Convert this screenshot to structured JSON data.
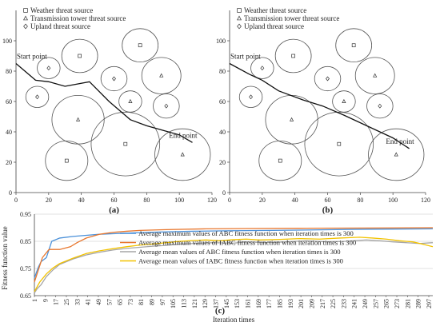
{
  "chart_data": [
    {
      "type": "scatter",
      "panel_label": "(a)",
      "xlim": [
        0,
        120
      ],
      "ylim": [
        0,
        120
      ],
      "xticks": [
        0,
        20,
        40,
        60,
        80,
        100,
        120
      ],
      "yticks": [
        0,
        20,
        40,
        60,
        80,
        100
      ],
      "legend": [
        {
          "symbol": "square",
          "label": "Weather threat source"
        },
        {
          "symbol": "triangle",
          "label": "Transmission tower threat source"
        },
        {
          "symbol": "diamond",
          "label": "Upland threat source"
        }
      ],
      "annotations": {
        "start": "Start point",
        "end": "End point"
      },
      "threats": [
        {
          "type": "diamond",
          "x": 20,
          "y": 82,
          "r": 7
        },
        {
          "type": "square",
          "x": 39,
          "y": 90,
          "r": 11
        },
        {
          "type": "square",
          "x": 76,
          "y": 97,
          "r": 11
        },
        {
          "type": "diamond",
          "x": 13,
          "y": 63,
          "r": 7
        },
        {
          "type": "diamond",
          "x": 60,
          "y": 75,
          "r": 8
        },
        {
          "type": "triangle",
          "x": 89,
          "y": 77,
          "r": 12
        },
        {
          "type": "triangle",
          "x": 70,
          "y": 60,
          "r": 7
        },
        {
          "type": "diamond",
          "x": 92,
          "y": 57,
          "r": 8
        },
        {
          "type": "triangle",
          "x": 38,
          "y": 48,
          "r": 16
        },
        {
          "type": "square",
          "x": 31,
          "y": 21,
          "r": 13
        },
        {
          "type": "square",
          "x": 67,
          "y": 32,
          "r": 21
        },
        {
          "type": "triangle",
          "x": 102,
          "y": 25,
          "r": 17
        }
      ],
      "path": [
        [
          0,
          85
        ],
        [
          12,
          74
        ],
        [
          20,
          73
        ],
        [
          30,
          70
        ],
        [
          45,
          73
        ],
        [
          57,
          60
        ],
        [
          70,
          48
        ],
        [
          80,
          44
        ],
        [
          90,
          41
        ],
        [
          100,
          38
        ],
        [
          108,
          33
        ]
      ]
    },
    {
      "type": "scatter",
      "panel_label": "(b)",
      "xlim": [
        0,
        120
      ],
      "ylim": [
        0,
        120
      ],
      "xticks": [
        0,
        20,
        40,
        60,
        80,
        100,
        120
      ],
      "yticks": [
        0,
        20,
        40,
        60,
        80,
        100
      ],
      "legend": [
        {
          "symbol": "square",
          "label": "Weather threat source"
        },
        {
          "symbol": "triangle",
          "label": "Transmission tower threat source"
        },
        {
          "symbol": "diamond",
          "label": "Upland threat source"
        }
      ],
      "annotations": {
        "start": "Start point",
        "end": "End point"
      },
      "threats": [
        {
          "type": "diamond",
          "x": 20,
          "y": 82,
          "r": 7
        },
        {
          "type": "square",
          "x": 39,
          "y": 90,
          "r": 11
        },
        {
          "type": "square",
          "x": 76,
          "y": 97,
          "r": 11
        },
        {
          "type": "diamond",
          "x": 13,
          "y": 63,
          "r": 7
        },
        {
          "type": "diamond",
          "x": 60,
          "y": 75,
          "r": 8
        },
        {
          "type": "triangle",
          "x": 89,
          "y": 77,
          "r": 12
        },
        {
          "type": "triangle",
          "x": 70,
          "y": 60,
          "r": 7
        },
        {
          "type": "diamond",
          "x": 92,
          "y": 57,
          "r": 8
        },
        {
          "type": "triangle",
          "x": 38,
          "y": 48,
          "r": 16
        },
        {
          "type": "square",
          "x": 31,
          "y": 21,
          "r": 13
        },
        {
          "type": "square",
          "x": 67,
          "y": 32,
          "r": 21
        },
        {
          "type": "triangle",
          "x": 102,
          "y": 25,
          "r": 17
        }
      ],
      "path": [
        [
          0,
          85
        ],
        [
          12,
          78
        ],
        [
          20,
          74
        ],
        [
          30,
          67
        ],
        [
          45,
          61
        ],
        [
          57,
          57
        ],
        [
          70,
          51
        ],
        [
          80,
          46
        ],
        [
          90,
          41
        ],
        [
          100,
          36
        ],
        [
          110,
          29
        ]
      ]
    },
    {
      "type": "line",
      "panel_label": "(c)",
      "xlabel": "Iteration times",
      "ylabel": "Fitness function value",
      "xlim": [
        1,
        300
      ],
      "ylim": [
        0.65,
        0.95
      ],
      "yticks": [
        0.65,
        0.75,
        0.85,
        0.95
      ],
      "xticks": [
        1,
        9,
        17,
        25,
        33,
        41,
        49,
        57,
        65,
        73,
        81,
        89,
        97,
        105,
        113,
        121,
        129,
        137,
        145,
        153,
        161,
        169,
        177,
        185,
        193,
        201,
        209,
        217,
        225,
        233,
        241,
        249,
        257,
        265,
        273,
        281,
        289,
        297
      ],
      "series": [
        {
          "name": "Average maximum values of ABC fitness function when iteration times is 300",
          "color": "#4a90d9",
          "points": [
            [
              1,
              0.715
            ],
            [
              4,
              0.755
            ],
            [
              6,
              0.775
            ],
            [
              10,
              0.79
            ],
            [
              14,
              0.85
            ],
            [
              20,
              0.862
            ],
            [
              30,
              0.868
            ],
            [
              40,
              0.872
            ],
            [
              50,
              0.876
            ],
            [
              60,
              0.878
            ],
            [
              70,
              0.88
            ],
            [
              80,
              0.882
            ],
            [
              100,
              0.885
            ],
            [
              120,
              0.887
            ],
            [
              150,
              0.889
            ],
            [
              180,
              0.89
            ],
            [
              210,
              0.892
            ],
            [
              240,
              0.894
            ],
            [
              270,
              0.895
            ],
            [
              300,
              0.896
            ]
          ]
        },
        {
          "name": "Average maximum values of IABC fitness function when iteration times is 300",
          "color": "#e8772e",
          "points": [
            [
              1,
              0.7
            ],
            [
              4,
              0.745
            ],
            [
              7,
              0.79
            ],
            [
              12,
              0.82
            ],
            [
              20,
              0.82
            ],
            [
              28,
              0.83
            ],
            [
              33,
              0.845
            ],
            [
              40,
              0.862
            ],
            [
              50,
              0.876
            ],
            [
              60,
              0.883
            ],
            [
              70,
              0.887
            ],
            [
              80,
              0.89
            ],
            [
              100,
              0.893
            ],
            [
              130,
              0.896
            ],
            [
              160,
              0.897
            ],
            [
              200,
              0.898
            ],
            [
              250,
              0.899
            ],
            [
              300,
              0.9
            ]
          ]
        },
        {
          "name": "Average mean values of ABC fitness function when iteration times is 300",
          "color": "#a6a6a6",
          "points": [
            [
              1,
              0.66
            ],
            [
              3,
              0.675
            ],
            [
              6,
              0.69
            ],
            [
              10,
              0.72
            ],
            [
              15,
              0.745
            ],
            [
              20,
              0.765
            ],
            [
              30,
              0.785
            ],
            [
              40,
              0.8
            ],
            [
              50,
              0.81
            ],
            [
              60,
              0.818
            ],
            [
              70,
              0.824
            ],
            [
              80,
              0.828
            ],
            [
              90,
              0.832
            ],
            [
              100,
              0.835
            ],
            [
              110,
              0.84
            ],
            [
              120,
              0.842
            ],
            [
              135,
              0.845
            ],
            [
              150,
              0.843
            ],
            [
              160,
              0.848
            ],
            [
              175,
              0.845
            ],
            [
              190,
              0.848
            ],
            [
              205,
              0.852
            ],
            [
              220,
              0.848
            ],
            [
              235,
              0.85
            ],
            [
              250,
              0.855
            ],
            [
              260,
              0.852
            ],
            [
              270,
              0.848
            ],
            [
              280,
              0.845
            ],
            [
              290,
              0.842
            ],
            [
              300,
              0.845
            ]
          ]
        },
        {
          "name": "Average mean values of IABC fitness function when iteration times is 300",
          "color": "#f2c200",
          "points": [
            [
              1,
              0.665
            ],
            [
              5,
              0.7
            ],
            [
              10,
              0.73
            ],
            [
              15,
              0.752
            ],
            [
              20,
              0.768
            ],
            [
              30,
              0.788
            ],
            [
              40,
              0.805
            ],
            [
              50,
              0.815
            ],
            [
              60,
              0.823
            ],
            [
              70,
              0.83
            ],
            [
              80,
              0.836
            ],
            [
              90,
              0.84
            ],
            [
              100,
              0.845
            ],
            [
              110,
              0.85
            ],
            [
              120,
              0.853
            ],
            [
              130,
              0.855
            ],
            [
              140,
              0.852
            ],
            [
              150,
              0.856
            ],
            [
              160,
              0.858
            ],
            [
              170,
              0.855
            ],
            [
              185,
              0.857
            ],
            [
              200,
              0.86
            ],
            [
              215,
              0.858
            ],
            [
              230,
              0.862
            ],
            [
              245,
              0.865
            ],
            [
              255,
              0.862
            ],
            [
              265,
              0.858
            ],
            [
              275,
              0.852
            ],
            [
              285,
              0.848
            ],
            [
              292,
              0.84
            ],
            [
              300,
              0.83
            ]
          ]
        }
      ]
    }
  ]
}
